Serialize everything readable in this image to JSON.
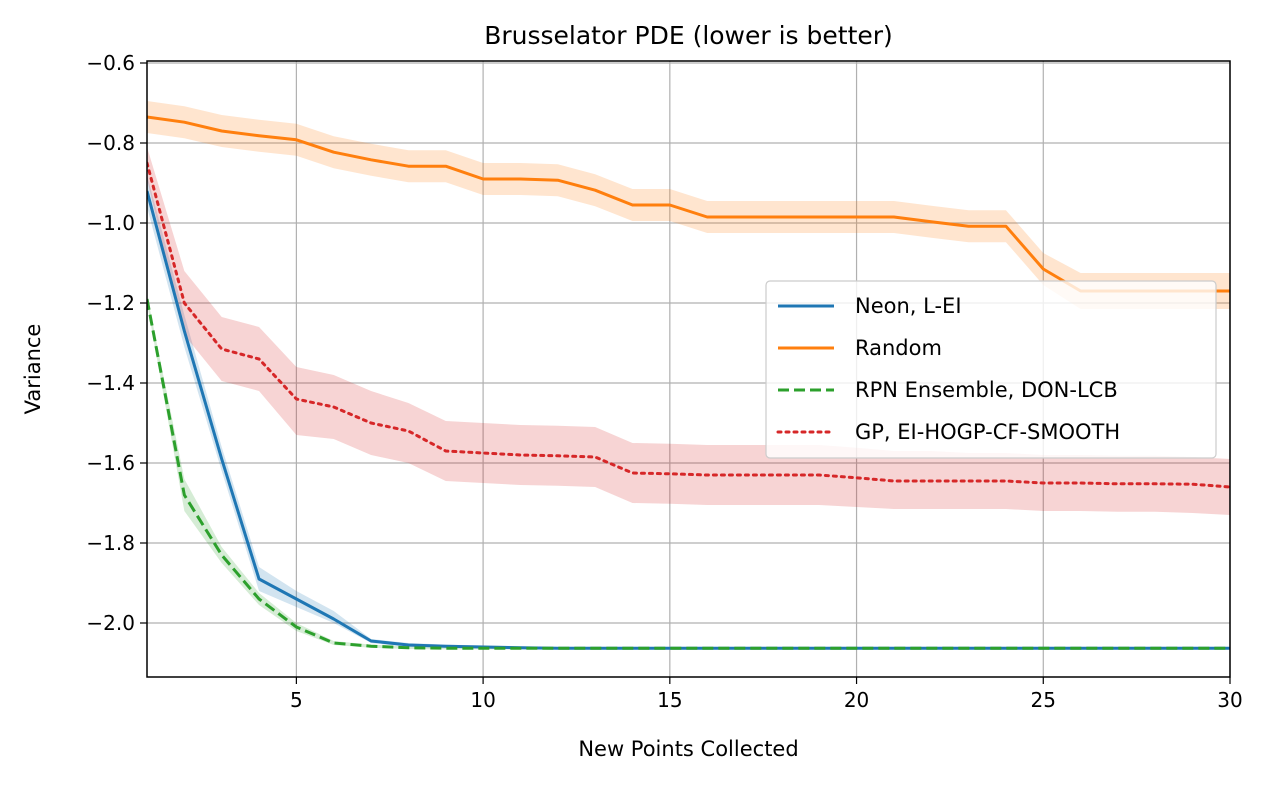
{
  "chart_data": {
    "type": "line",
    "title": "Brusselator PDE (lower is better)",
    "xlabel": "New Points Collected",
    "ylabel": "Variance",
    "xlim": [
      1,
      30
    ],
    "ylim": [
      -2.135,
      -0.595
    ],
    "xticks": [
      5,
      10,
      15,
      20,
      25,
      30
    ],
    "yticks": [
      -0.6,
      -0.8,
      -1.0,
      -1.2,
      -1.4,
      -1.6,
      -1.8,
      -2.0
    ],
    "xtick_labels": [
      "5",
      "10",
      "15",
      "20",
      "25",
      "30"
    ],
    "ytick_labels": [
      "−0.6",
      "−0.8",
      "−1.0",
      "−1.2",
      "−1.4",
      "−1.6",
      "−1.8",
      "−2.0"
    ],
    "grid": true,
    "legend_position": "center-right",
    "x": [
      1,
      2,
      3,
      4,
      5,
      6,
      7,
      8,
      9,
      10,
      11,
      12,
      13,
      14,
      15,
      16,
      17,
      18,
      19,
      20,
      21,
      22,
      23,
      24,
      25,
      26,
      27,
      28,
      29,
      30
    ],
    "series": [
      {
        "name": "Neon, L-EI",
        "color": "#1f77b4",
        "style": "solid",
        "values": [
          -0.92,
          -1.27,
          -1.59,
          -1.89,
          -1.94,
          -1.99,
          -2.045,
          -2.055,
          -2.058,
          -2.06,
          -2.062,
          -2.063,
          -2.063,
          -2.063,
          -2.063,
          -2.063,
          -2.063,
          -2.063,
          -2.063,
          -2.063,
          -2.063,
          -2.063,
          -2.063,
          -2.063,
          -2.063,
          -2.063,
          -2.063,
          -2.063,
          -2.063,
          -2.063
        ],
        "lower": [
          -0.96,
          -1.31,
          -1.62,
          -1.92,
          -1.96,
          -2.0,
          -2.05,
          -2.06,
          -2.062,
          -2.064,
          -2.066,
          -2.066,
          -2.066,
          -2.066,
          -2.066,
          -2.066,
          -2.066,
          -2.066,
          -2.066,
          -2.066,
          -2.066,
          -2.066,
          -2.066,
          -2.066,
          -2.066,
          -2.066,
          -2.066,
          -2.066,
          -2.066,
          -2.066
        ],
        "upper": [
          -0.88,
          -1.23,
          -1.56,
          -1.86,
          -1.92,
          -1.97,
          -2.04,
          -2.05,
          -2.054,
          -2.056,
          -2.058,
          -2.06,
          -2.06,
          -2.06,
          -2.06,
          -2.06,
          -2.06,
          -2.06,
          -2.06,
          -2.06,
          -2.06,
          -2.06,
          -2.06,
          -2.06,
          -2.06,
          -2.06,
          -2.06,
          -2.06,
          -2.06,
          -2.06
        ]
      },
      {
        "name": "Random",
        "color": "#ff7f0e",
        "style": "solid",
        "values": [
          -0.735,
          -0.748,
          -0.77,
          -0.782,
          -0.792,
          -0.823,
          -0.842,
          -0.858,
          -0.858,
          -0.89,
          -0.89,
          -0.893,
          -0.918,
          -0.955,
          -0.955,
          -0.985,
          -0.985,
          -0.985,
          -0.985,
          -0.985,
          -0.985,
          -0.997,
          -1.008,
          -1.008,
          -1.115,
          -1.17,
          -1.17,
          -1.17,
          -1.17,
          -1.17
        ],
        "lower": [
          -0.775,
          -0.788,
          -0.81,
          -0.822,
          -0.832,
          -0.863,
          -0.882,
          -0.898,
          -0.898,
          -0.93,
          -0.93,
          -0.933,
          -0.958,
          -0.995,
          -0.995,
          -1.025,
          -1.025,
          -1.025,
          -1.025,
          -1.025,
          -1.025,
          -1.037,
          -1.048,
          -1.048,
          -1.155,
          -1.215,
          -1.215,
          -1.215,
          -1.215,
          -1.215
        ],
        "upper": [
          -0.695,
          -0.708,
          -0.73,
          -0.742,
          -0.752,
          -0.783,
          -0.802,
          -0.818,
          -0.818,
          -0.85,
          -0.85,
          -0.853,
          -0.878,
          -0.915,
          -0.915,
          -0.945,
          -0.945,
          -0.945,
          -0.945,
          -0.945,
          -0.945,
          -0.957,
          -0.968,
          -0.968,
          -1.075,
          -1.125,
          -1.125,
          -1.125,
          -1.125,
          -1.125
        ]
      },
      {
        "name": "RPN Ensemble, DON-LCB",
        "color": "#2ca02c",
        "style": "dashed",
        "values": [
          -1.19,
          -1.68,
          -1.83,
          -1.94,
          -2.01,
          -2.05,
          -2.058,
          -2.062,
          -2.063,
          -2.063,
          -2.063,
          -2.063,
          -2.063,
          -2.063,
          -2.063,
          -2.063,
          -2.063,
          -2.063,
          -2.063,
          -2.063,
          -2.063,
          -2.063,
          -2.063,
          -2.063,
          -2.063,
          -2.063,
          -2.063,
          -2.063,
          -2.063,
          -2.063
        ],
        "lower": [
          -1.2,
          -1.72,
          -1.85,
          -1.955,
          -2.02,
          -2.055,
          -2.062,
          -2.065,
          -2.066,
          -2.066,
          -2.066,
          -2.066,
          -2.066,
          -2.066,
          -2.066,
          -2.066,
          -2.066,
          -2.066,
          -2.066,
          -2.066,
          -2.066,
          -2.066,
          -2.066,
          -2.066,
          -2.066,
          -2.066,
          -2.066,
          -2.066,
          -2.066,
          -2.066
        ],
        "upper": [
          -1.18,
          -1.64,
          -1.81,
          -1.925,
          -2.0,
          -2.045,
          -2.054,
          -2.059,
          -2.06,
          -2.06,
          -2.06,
          -2.06,
          -2.06,
          -2.06,
          -2.06,
          -2.06,
          -2.06,
          -2.06,
          -2.06,
          -2.06,
          -2.06,
          -2.06,
          -2.06,
          -2.06,
          -2.06,
          -2.06,
          -2.06,
          -2.06,
          -2.06,
          -2.06
        ]
      },
      {
        "name": "GP, EI-HOGP-CF-SMOOTH",
        "color": "#d62728",
        "style": "dotted",
        "values": [
          -0.85,
          -1.2,
          -1.315,
          -1.34,
          -1.44,
          -1.46,
          -1.5,
          -1.52,
          -1.57,
          -1.575,
          -1.58,
          -1.582,
          -1.585,
          -1.625,
          -1.627,
          -1.63,
          -1.63,
          -1.63,
          -1.63,
          -1.637,
          -1.645,
          -1.645,
          -1.645,
          -1.645,
          -1.65,
          -1.65,
          -1.652,
          -1.652,
          -1.653,
          -1.66
        ],
        "lower": [
          -0.89,
          -1.28,
          -1.395,
          -1.42,
          -1.53,
          -1.54,
          -1.58,
          -1.6,
          -1.645,
          -1.65,
          -1.655,
          -1.657,
          -1.66,
          -1.7,
          -1.702,
          -1.705,
          -1.705,
          -1.705,
          -1.705,
          -1.71,
          -1.715,
          -1.715,
          -1.715,
          -1.715,
          -1.72,
          -1.72,
          -1.722,
          -1.722,
          -1.725,
          -1.73
        ],
        "upper": [
          -0.81,
          -1.12,
          -1.235,
          -1.26,
          -1.36,
          -1.38,
          -1.42,
          -1.45,
          -1.495,
          -1.5,
          -1.505,
          -1.507,
          -1.51,
          -1.55,
          -1.552,
          -1.555,
          -1.555,
          -1.555,
          -1.555,
          -1.562,
          -1.57,
          -1.57,
          -1.575,
          -1.575,
          -1.58,
          -1.58,
          -1.582,
          -1.582,
          -1.585,
          -1.59
        ]
      }
    ]
  }
}
